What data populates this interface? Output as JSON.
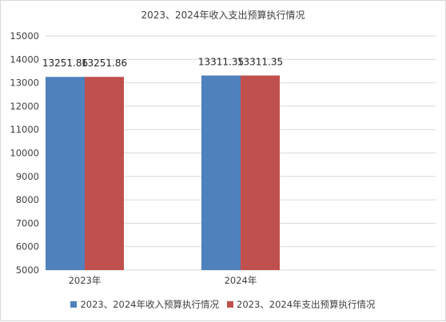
{
  "chart_data": {
    "type": "bar",
    "title": "2023、2024年收入支出预算执行情况",
    "categories": [
      "2023年",
      "2024年"
    ],
    "series": [
      {
        "name": "2023、2024年收入预算执行情况",
        "values": [
          13251.86,
          13311.35
        ],
        "labels": [
          "13251.86",
          "13311.35"
        ],
        "color": "#4f81bd"
      },
      {
        "name": "2023、2024年支出预算执行情况",
        "values": [
          13251.86,
          13311.35
        ],
        "labels": [
          "13251.86",
          "13311.35"
        ],
        "color": "#c0504d"
      }
    ],
    "ylim": [
      5000,
      15000
    ],
    "yticks": [
      5000,
      6000,
      7000,
      8000,
      9000,
      10000,
      11000,
      12000,
      13000,
      14000,
      15000
    ],
    "grid": true,
    "legend": "bottom",
    "xlabel": "",
    "ylabel": ""
  }
}
